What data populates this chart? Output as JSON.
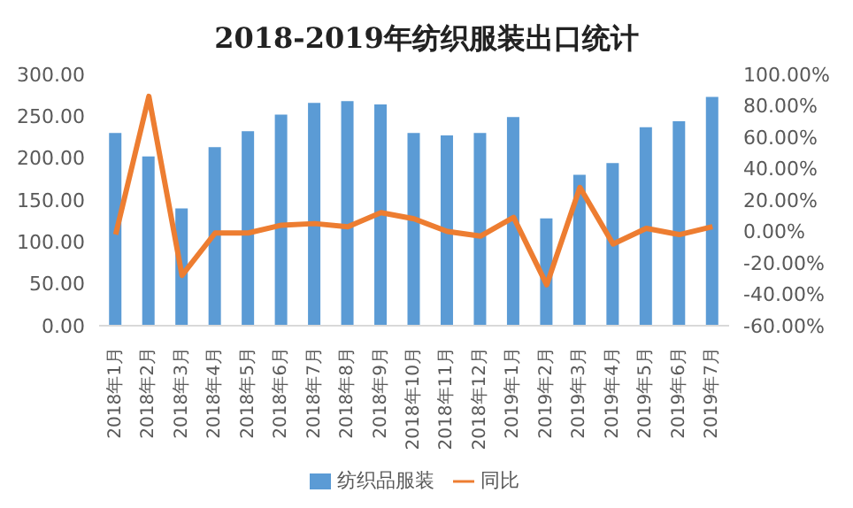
{
  "chart_data": {
    "type": "bar",
    "title": "2018-2019年纺织服装出口统计",
    "categories": [
      "2018年1月",
      "2018年2月",
      "2018年3月",
      "2018年4月",
      "2018年5月",
      "2018年6月",
      "2018年7月",
      "2018年8月",
      "2018年9月",
      "2018年10月",
      "2018年11月",
      "2018年12月",
      "2019年1月",
      "2019年2月",
      "2019年3月",
      "2019年4月",
      "2019年5月",
      "2019年6月",
      "2019年7月"
    ],
    "series": [
      {
        "name": "纺织品服装",
        "color": "#5b9bd5",
        "values": [
          230,
          202,
          140,
          213,
          232,
          252,
          266,
          268,
          264,
          230,
          227,
          230,
          249,
          128,
          180,
          194,
          237,
          244,
          273
        ]
      },
      {
        "name": "同比",
        "type": "line",
        "axis": "y2",
        "color": "#ed7d31",
        "values": [
          -2,
          86,
          -28,
          -1,
          -1,
          4,
          5,
          3,
          12,
          8,
          0,
          -3,
          9,
          -34,
          28,
          -8,
          2,
          -2,
          3
        ]
      }
    ],
    "ylim": [
      0,
      300
    ],
    "yticks": [
      {
        "value": 0,
        "label": "0.00"
      },
      {
        "value": 50,
        "label": "50.00"
      },
      {
        "value": 100,
        "label": "100.00"
      },
      {
        "value": 150,
        "label": "150.00"
      },
      {
        "value": 200,
        "label": "200.00"
      },
      {
        "value": 250,
        "label": "250.00"
      },
      {
        "value": 300,
        "label": "300.00"
      }
    ],
    "y2lim": [
      -60,
      100
    ],
    "y2ticks": [
      {
        "value": -60,
        "label": "-60.00%"
      },
      {
        "value": -40,
        "label": "-40.00%"
      },
      {
        "value": -20,
        "label": "-20.00%"
      },
      {
        "value": 0,
        "label": "0.00%"
      },
      {
        "value": 20,
        "label": "20.00%"
      },
      {
        "value": 40,
        "label": "40.00%"
      },
      {
        "value": 60,
        "label": "60.00%"
      },
      {
        "value": 80,
        "label": "80.00%"
      },
      {
        "value": 100,
        "label": "100.00%"
      }
    ],
    "grid": false,
    "legend": "bottom",
    "marker": "none"
  }
}
